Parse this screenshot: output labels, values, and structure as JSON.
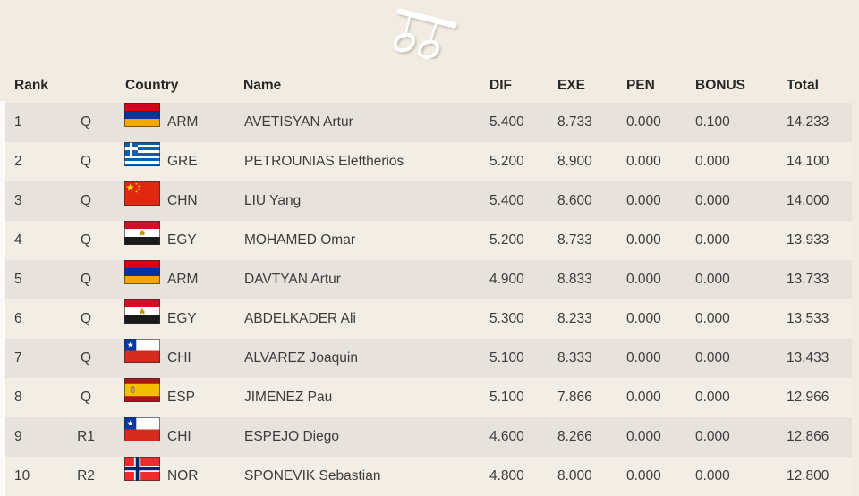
{
  "page": {
    "background_color": "#f1ebe2",
    "row_dark_color": "#e8e2dd",
    "row_light_color": "#f3eee5",
    "text_color": "#3c3c3b",
    "header_text_color": "#262626"
  },
  "header_icon": {
    "name": "rings-icon"
  },
  "table": {
    "headers": {
      "rank": "Rank",
      "country": "Country",
      "name": "Name",
      "dif": "DIF",
      "exe": "EXE",
      "pen": "PEN",
      "bonus": "BONUS",
      "total": "Total"
    },
    "rows": [
      {
        "rank": "1",
        "qual": "Q",
        "country": "ARM",
        "name": "AVETISYAN Artur",
        "dif": "5.400",
        "exe": "8.733",
        "pen": "0.000",
        "bonus": "0.100",
        "total": "14.233"
      },
      {
        "rank": "2",
        "qual": "Q",
        "country": "GRE",
        "name": "PETROUNIAS Eleftherios",
        "dif": "5.200",
        "exe": "8.900",
        "pen": "0.000",
        "bonus": "0.000",
        "total": "14.100"
      },
      {
        "rank": "3",
        "qual": "Q",
        "country": "CHN",
        "name": "LIU Yang",
        "dif": "5.400",
        "exe": "8.600",
        "pen": "0.000",
        "bonus": "0.000",
        "total": "14.000"
      },
      {
        "rank": "4",
        "qual": "Q",
        "country": "EGY",
        "name": "MOHAMED Omar",
        "dif": "5.200",
        "exe": "8.733",
        "pen": "0.000",
        "bonus": "0.000",
        "total": "13.933"
      },
      {
        "rank": "5",
        "qual": "Q",
        "country": "ARM",
        "name": "DAVTYAN Artur",
        "dif": "4.900",
        "exe": "8.833",
        "pen": "0.000",
        "bonus": "0.000",
        "total": "13.733"
      },
      {
        "rank": "6",
        "qual": "Q",
        "country": "EGY",
        "name": "ABDELKADER Ali",
        "dif": "5.300",
        "exe": "8.233",
        "pen": "0.000",
        "bonus": "0.000",
        "total": "13.533"
      },
      {
        "rank": "7",
        "qual": "Q",
        "country": "CHI",
        "name": "ALVAREZ Joaquin",
        "dif": "5.100",
        "exe": "8.333",
        "pen": "0.000",
        "bonus": "0.000",
        "total": "13.433"
      },
      {
        "rank": "8",
        "qual": "Q",
        "country": "ESP",
        "name": "JIMENEZ Pau",
        "dif": "5.100",
        "exe": "7.866",
        "pen": "0.000",
        "bonus": "0.000",
        "total": "12.966"
      },
      {
        "rank": "9",
        "qual": "R1",
        "country": "CHI",
        "name": "ESPEJO Diego",
        "dif": "4.600",
        "exe": "8.266",
        "pen": "0.000",
        "bonus": "0.000",
        "total": "12.866"
      },
      {
        "rank": "10",
        "qual": "R2",
        "country": "NOR",
        "name": "SPONEVIK Sebastian",
        "dif": "4.800",
        "exe": "8.000",
        "pen": "0.000",
        "bonus": "0.000",
        "total": "12.800"
      }
    ]
  },
  "flag_colors": {
    "ARM": {
      "red": "#D90012",
      "blue": "#0033A0",
      "orange": "#F2A800"
    },
    "GRE": {
      "blue": "#0D5EAF",
      "white": "#FFFFFF"
    },
    "CHN": {
      "red": "#DE2910",
      "yellow": "#FFDE00"
    },
    "EGY": {
      "red": "#CE1126",
      "white": "#FFFFFF",
      "black": "#1a1a1a",
      "gold": "#C09300"
    },
    "CHI": {
      "white": "#FFFFFF",
      "red": "#D52B1E",
      "blue": "#0039A6"
    },
    "ESP": {
      "red": "#AA151B",
      "yellow": "#F1BF00",
      "crest": "#BD9B6A"
    },
    "NOR": {
      "red": "#EF2B2D",
      "white": "#FFFFFF",
      "blue": "#002868"
    }
  }
}
